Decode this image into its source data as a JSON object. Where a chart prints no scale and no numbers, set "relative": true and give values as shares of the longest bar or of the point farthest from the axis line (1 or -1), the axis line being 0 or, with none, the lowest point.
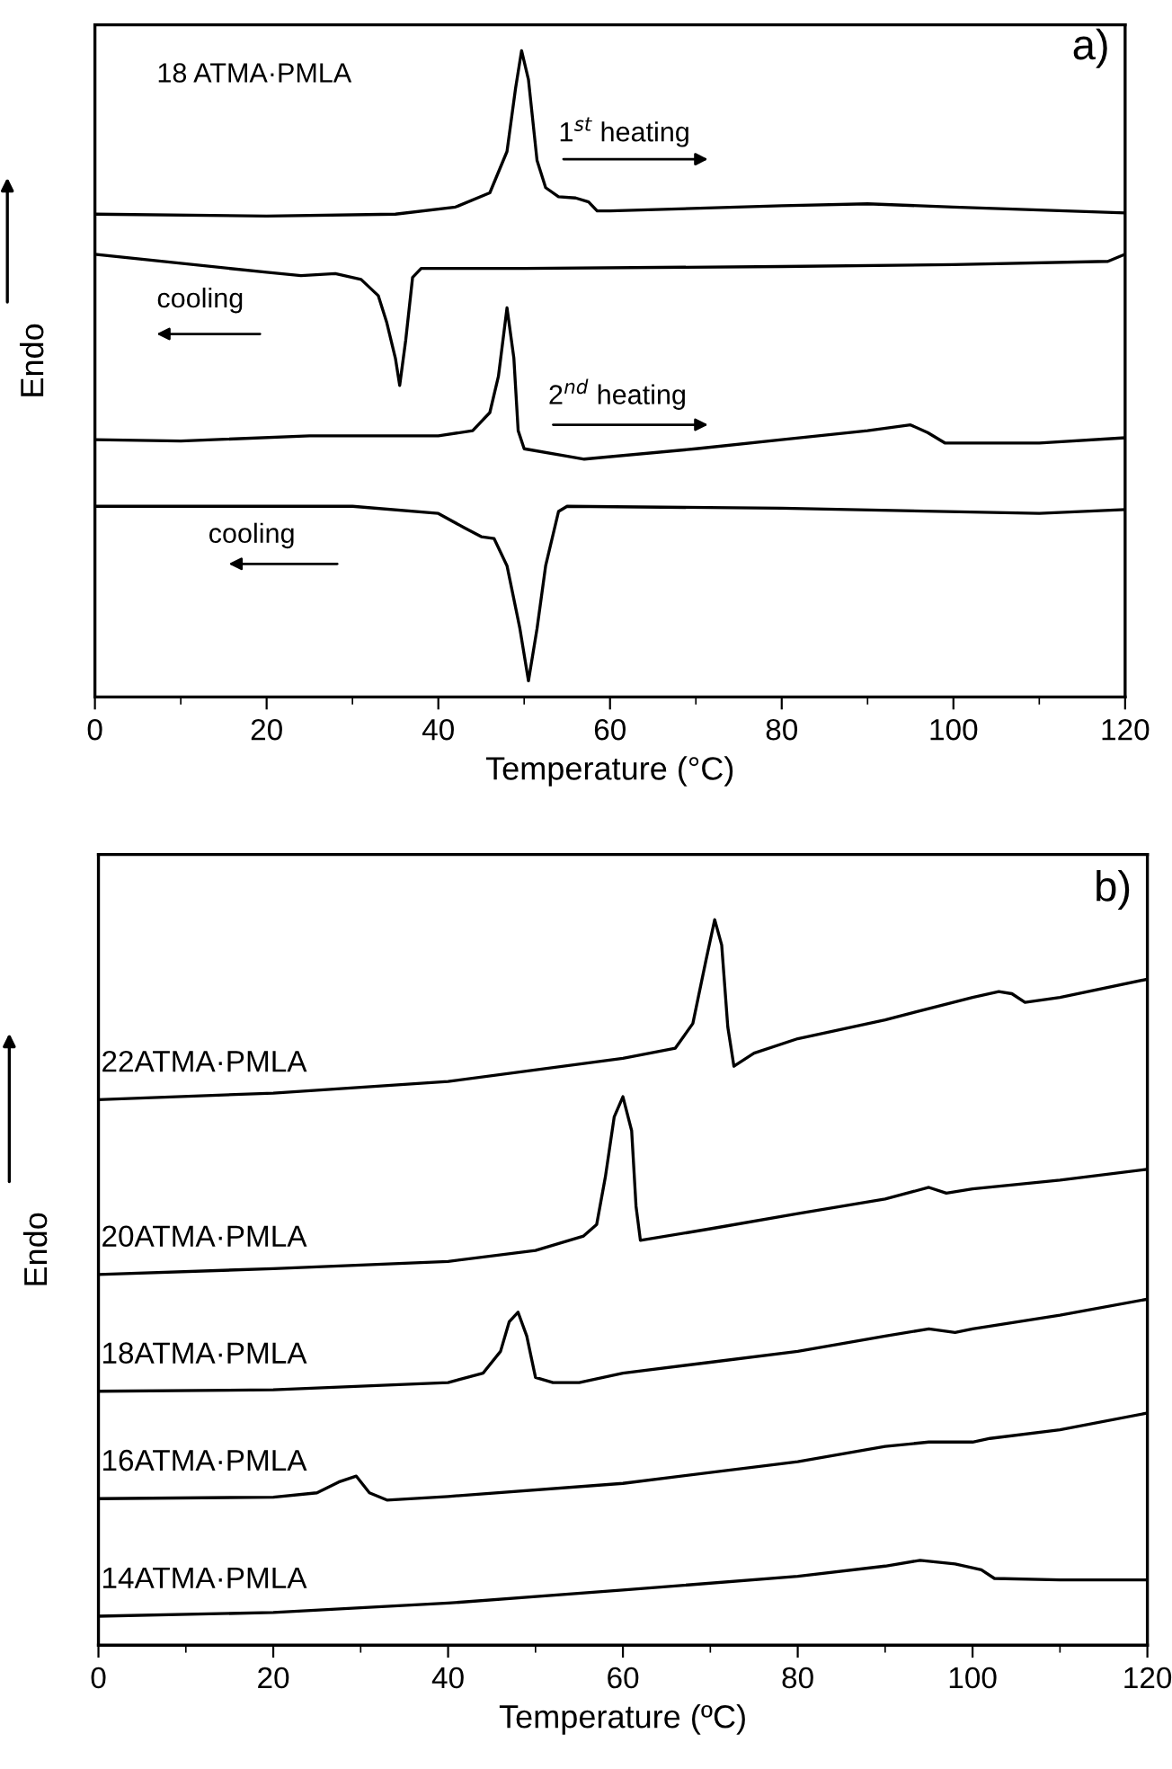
{
  "chart_data": [
    {
      "type": "line",
      "relative": true,
      "xlabel": "Temperature (°C)",
      "ylabel": "Endo",
      "xlim": [
        0,
        120
      ],
      "xticks": [
        0,
        20,
        40,
        60,
        80,
        100,
        120
      ],
      "tick_labels": "x",
      "annotations": [
        "18 ATMA·PMLA",
        "a)",
        "1$^{st}$ heating",
        "cooling",
        "2$^{nd}$ heating",
        "cooling"
      ],
      "series": [
        {
          "color": "#000000",
          "x": [
            0,
            20,
            35,
            42,
            46,
            48,
            49,
            49.7,
            50.5,
            51.5,
            52.5,
            54,
            56,
            57.5,
            58.5,
            60,
            80,
            90,
            100,
            120
          ],
          "values": [
            0.747,
            0.744,
            0.747,
            0.758,
            0.78,
            0.844,
            0.942,
            1.0,
            0.955,
            0.83,
            0.788,
            0.774,
            0.772,
            0.766,
            0.752,
            0.752,
            0.76,
            0.763,
            0.758,
            0.749
          ]
        },
        {
          "color": "#000000",
          "x": [
            0,
            20,
            24,
            28,
            31,
            33,
            34,
            35,
            35.5,
            36.2,
            37,
            38,
            50,
            80,
            100,
            118,
            120
          ],
          "values": [
            0.685,
            0.657,
            0.652,
            0.655,
            0.646,
            0.621,
            0.579,
            0.524,
            0.482,
            0.552,
            0.649,
            0.663,
            0.663,
            0.666,
            0.669,
            0.674,
            0.685
          ]
        },
        {
          "color": "#000000",
          "x": [
            0,
            10,
            25,
            40,
            44,
            46,
            47,
            48,
            48.8,
            49.3,
            50,
            57,
            70,
            80,
            90,
            95,
            97,
            99,
            110,
            120
          ],
          "values": [
            0.398,
            0.396,
            0.404,
            0.404,
            0.412,
            0.44,
            0.496,
            0.602,
            0.524,
            0.412,
            0.384,
            0.368,
            0.384,
            0.398,
            0.412,
            0.421,
            0.409,
            0.393,
            0.393,
            0.401
          ]
        },
        {
          "color": "#000000",
          "x": [
            0,
            30,
            40,
            43,
            45,
            46.5,
            48,
            49.5,
            50.5,
            51.5,
            52.5,
            54,
            55,
            80,
            110,
            120
          ],
          "values": [
            0.295,
            0.295,
            0.284,
            0.262,
            0.248,
            0.245,
            0.203,
            0.106,
            0.025,
            0.106,
            0.203,
            0.287,
            0.295,
            0.292,
            0.284,
            0.29
          ]
        }
      ]
    },
    {
      "type": "line",
      "relative": true,
      "xlabel": "Temperature (ºC)",
      "ylabel": "Endo",
      "xlim": [
        0,
        120
      ],
      "xticks": [
        0,
        20,
        40,
        60,
        80,
        100,
        120
      ],
      "tick_labels": "x",
      "annotations": [
        "b)"
      ],
      "series": [
        {
          "name": "22ATMA·PMLA",
          "color": "#000000",
          "x": [
            0,
            20,
            40,
            60,
            66,
            68,
            69.5,
            70.5,
            71.3,
            72,
            72.7,
            75,
            80,
            90,
            100,
            103,
            104.5,
            106,
            110,
            120
          ],
          "values": [
            0.752,
            0.761,
            0.777,
            0.809,
            0.823,
            0.857,
            0.944,
            1.0,
            0.965,
            0.852,
            0.798,
            0.816,
            0.836,
            0.862,
            0.893,
            0.901,
            0.898,
            0.886,
            0.893,
            0.918
          ]
        },
        {
          "name": "20ATMA·PMLA",
          "color": "#000000",
          "x": [
            0,
            20,
            40,
            50,
            55.5,
            57,
            58,
            59,
            60,
            61,
            61.5,
            62,
            70,
            80,
            90,
            95,
            97,
            100,
            110,
            120
          ],
          "values": [
            0.511,
            0.519,
            0.529,
            0.544,
            0.564,
            0.58,
            0.646,
            0.728,
            0.756,
            0.709,
            0.605,
            0.558,
            0.574,
            0.595,
            0.615,
            0.631,
            0.623,
            0.629,
            0.641,
            0.656
          ]
        },
        {
          "name": "18ATMA·PMLA",
          "color": "#000000",
          "x": [
            0,
            20,
            40,
            44,
            46,
            47,
            48,
            49,
            50,
            52,
            55,
            60,
            70,
            80,
            90,
            95,
            98,
            100,
            110,
            120
          ],
          "values": [
            0.35,
            0.352,
            0.362,
            0.375,
            0.405,
            0.446,
            0.459,
            0.426,
            0.369,
            0.362,
            0.362,
            0.375,
            0.39,
            0.405,
            0.426,
            0.436,
            0.431,
            0.436,
            0.455,
            0.477
          ]
        },
        {
          "name": "16ATMA·PMLA",
          "color": "#000000",
          "x": [
            0,
            20,
            25,
            27.5,
            29.5,
            31,
            33,
            40,
            60,
            80,
            90,
            95,
            100,
            102,
            110,
            120
          ],
          "values": [
            0.202,
            0.204,
            0.21,
            0.225,
            0.233,
            0.21,
            0.2,
            0.205,
            0.223,
            0.253,
            0.274,
            0.28,
            0.28,
            0.285,
            0.297,
            0.32
          ]
        },
        {
          "name": "14ATMA·PMLA",
          "color": "#000000",
          "x": [
            0,
            20,
            40,
            60,
            80,
            90,
            94,
            98,
            101,
            102.5,
            110,
            120
          ],
          "values": [
            0.04,
            0.045,
            0.058,
            0.076,
            0.095,
            0.109,
            0.117,
            0.112,
            0.104,
            0.092,
            0.09,
            0.09
          ]
        }
      ]
    }
  ]
}
